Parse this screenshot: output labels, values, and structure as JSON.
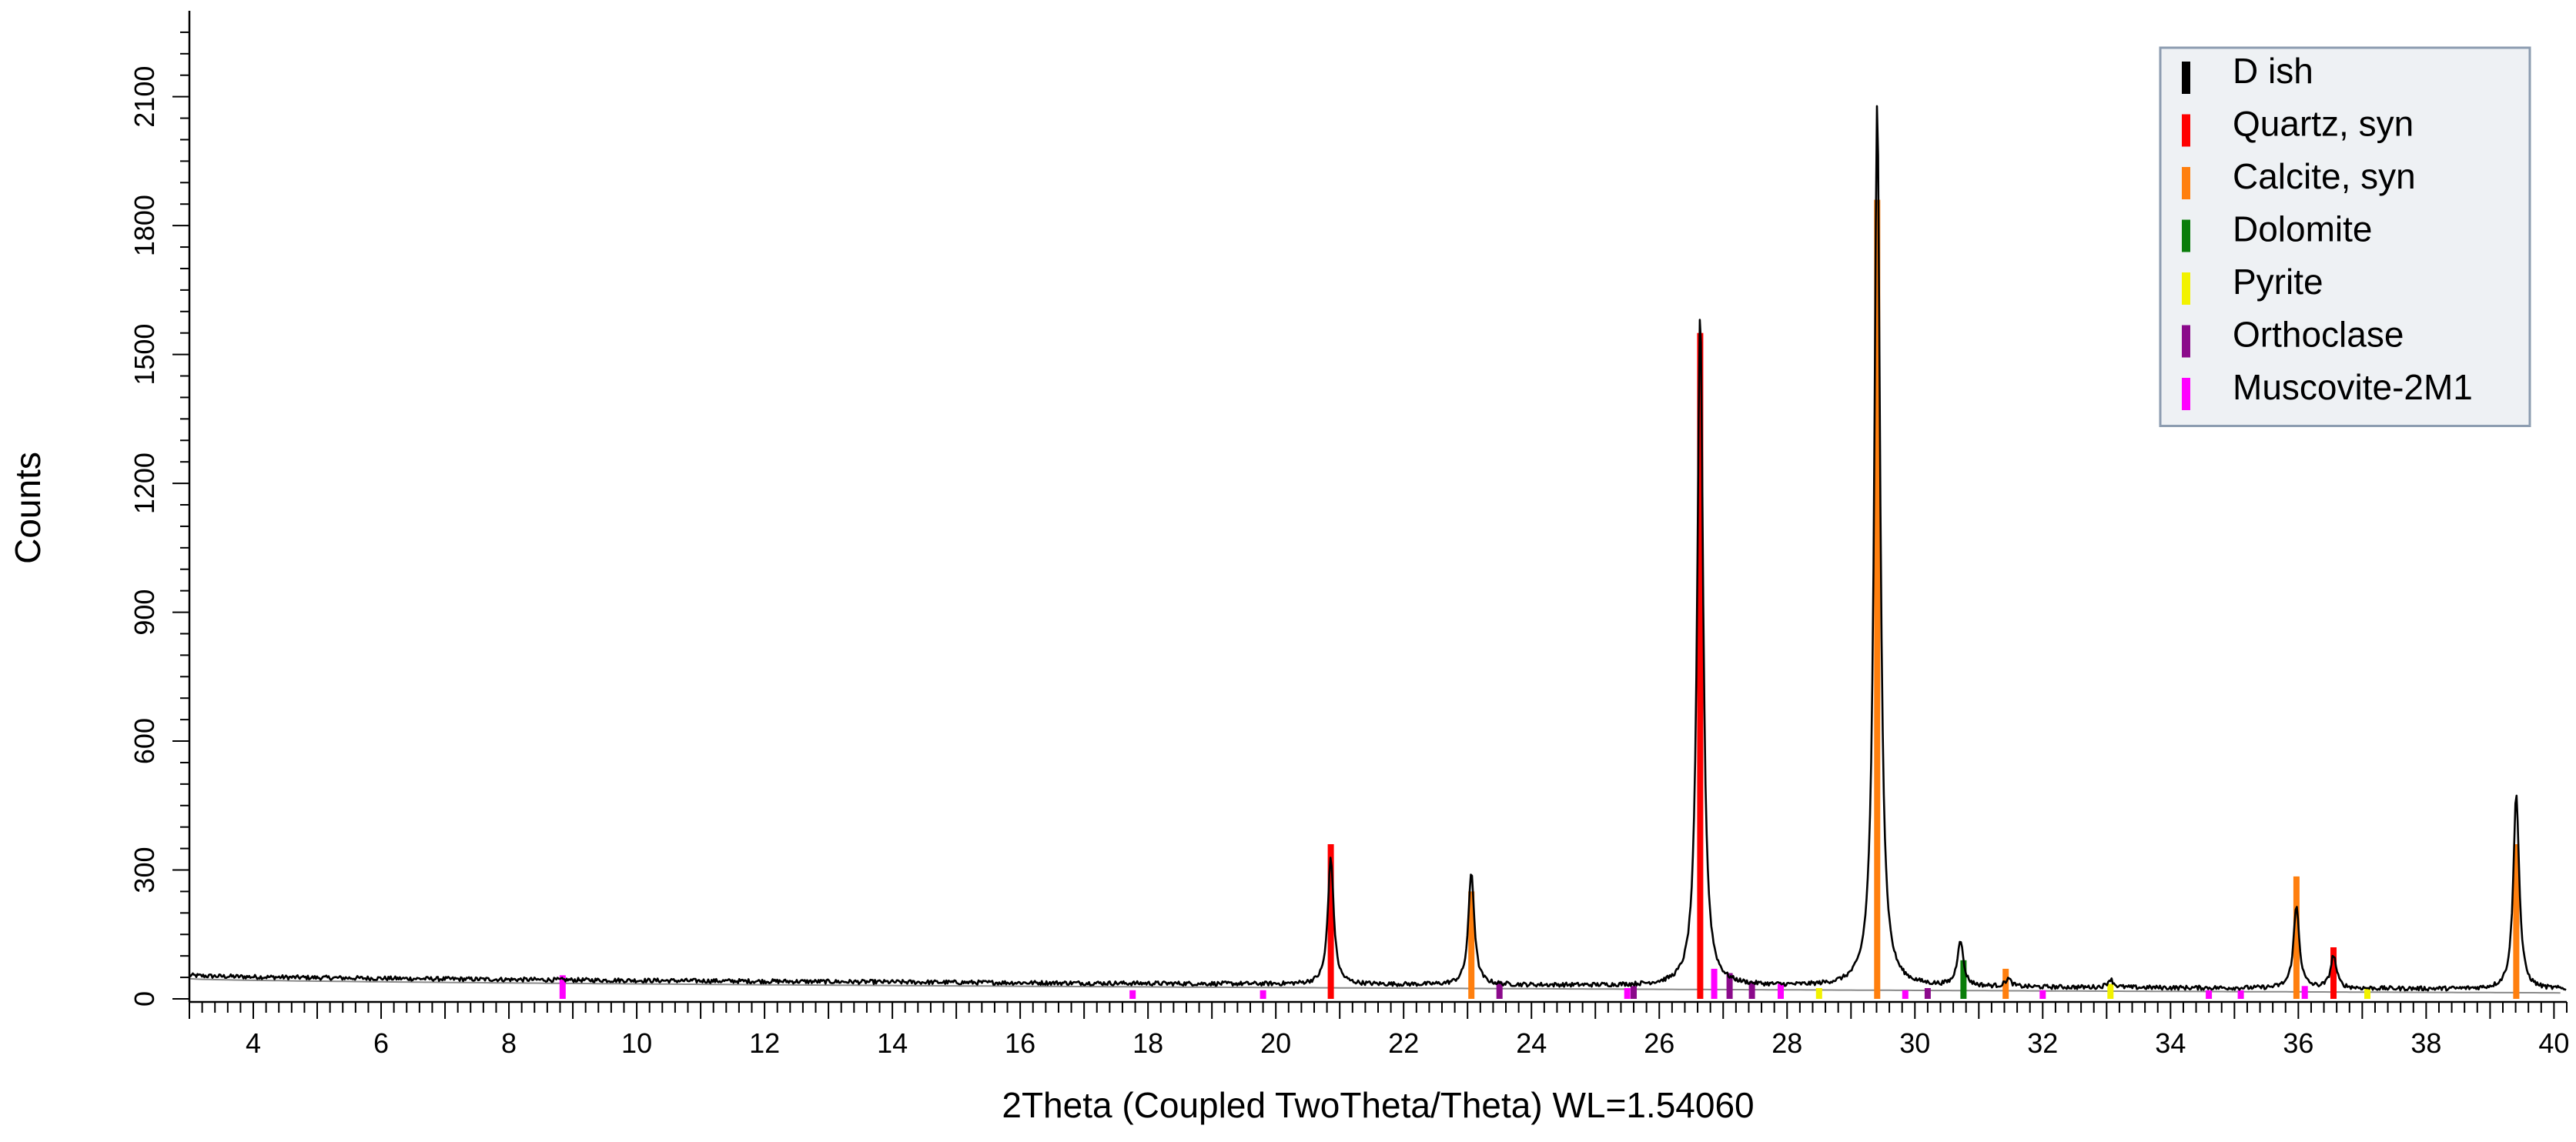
{
  "chart_data": {
    "type": "line",
    "title": "",
    "xlabel": "2Theta (Coupled TwoTheta/Theta) WL=1.54060",
    "ylabel": "Counts",
    "xlim": [
      3,
      40.2
    ],
    "ylim": [
      0,
      2300
    ],
    "x_ticks": [
      4,
      6,
      8,
      10,
      12,
      14,
      16,
      18,
      20,
      22,
      24,
      26,
      28,
      30,
      32,
      34,
      36,
      38,
      40
    ],
    "y_ticks": [
      0,
      300,
      600,
      900,
      1200,
      1500,
      1800,
      2100
    ],
    "y_tick_labels_rotated": true,
    "grid": false,
    "legend_position": "top-right",
    "colors": {
      "pattern": "#000000",
      "background_curve": "#8a8a8a",
      "legend_background": "#eef1f4",
      "legend_border": "#8c9cb0"
    },
    "pattern": {
      "name": "D ish",
      "color": "#000000",
      "background_start": 55,
      "background_end": 22,
      "base_level": 32,
      "noise_amplitude": 5,
      "peaks": [
        {
          "x": 20.86,
          "y": 330
        },
        {
          "x": 23.06,
          "y": 295
        },
        {
          "x": 26.64,
          "y": 1600
        },
        {
          "x": 29.41,
          "y": 2085
        },
        {
          "x": 30.71,
          "y": 135
        },
        {
          "x": 31.46,
          "y": 45
        },
        {
          "x": 33.06,
          "y": 45
        },
        {
          "x": 35.97,
          "y": 215
        },
        {
          "x": 36.55,
          "y": 100
        },
        {
          "x": 39.41,
          "y": 480
        }
      ]
    },
    "series": [
      {
        "name": "Quartz, syn",
        "color": "#ff0000",
        "points": [
          {
            "x": 20.86,
            "y": 360
          },
          {
            "x": 26.64,
            "y": 1550
          },
          {
            "x": 36.55,
            "y": 120
          }
        ]
      },
      {
        "name": "Calcite, syn",
        "color": "#ff7f0e",
        "points": [
          {
            "x": 23.06,
            "y": 250
          },
          {
            "x": 29.41,
            "y": 1860
          },
          {
            "x": 31.42,
            "y": 70
          },
          {
            "x": 35.97,
            "y": 285
          },
          {
            "x": 39.41,
            "y": 360
          }
        ]
      },
      {
        "name": "Dolomite",
        "color": "#0a7d0a",
        "points": [
          {
            "x": 30.76,
            "y": 90
          }
        ]
      },
      {
        "name": "Pyrite",
        "color": "#f2f200",
        "points": [
          {
            "x": 28.5,
            "y": 25
          },
          {
            "x": 33.06,
            "y": 35
          },
          {
            "x": 37.08,
            "y": 25
          }
        ]
      },
      {
        "name": "Orthoclase",
        "color": "#8b0a8b",
        "points": [
          {
            "x": 23.5,
            "y": 40
          },
          {
            "x": 25.6,
            "y": 30
          },
          {
            "x": 27.1,
            "y": 60
          },
          {
            "x": 27.45,
            "y": 40
          },
          {
            "x": 30.2,
            "y": 25
          }
        ]
      },
      {
        "name": "Muscovite-2M1",
        "color": "#ff00ff",
        "points": [
          {
            "x": 8.84,
            "y": 55
          },
          {
            "x": 17.76,
            "y": 20
          },
          {
            "x": 19.8,
            "y": 20
          },
          {
            "x": 25.5,
            "y": 25
          },
          {
            "x": 26.86,
            "y": 70
          },
          {
            "x": 27.9,
            "y": 35
          },
          {
            "x": 29.85,
            "y": 20
          },
          {
            "x": 32.0,
            "y": 20
          },
          {
            "x": 34.6,
            "y": 20
          },
          {
            "x": 35.1,
            "y": 20
          },
          {
            "x": 36.1,
            "y": 30
          }
        ]
      }
    ],
    "legend": [
      {
        "name": "D ish",
        "color": "#000000"
      },
      {
        "name": "Quartz, syn",
        "color": "#ff0000"
      },
      {
        "name": "Calcite, syn",
        "color": "#ff7f0e"
      },
      {
        "name": "Dolomite",
        "color": "#0a7d0a"
      },
      {
        "name": "Pyrite",
        "color": "#f2f200"
      },
      {
        "name": "Orthoclase",
        "color": "#8b0a8b"
      },
      {
        "name": "Muscovite-2M1",
        "color": "#ff00ff"
      }
    ]
  }
}
